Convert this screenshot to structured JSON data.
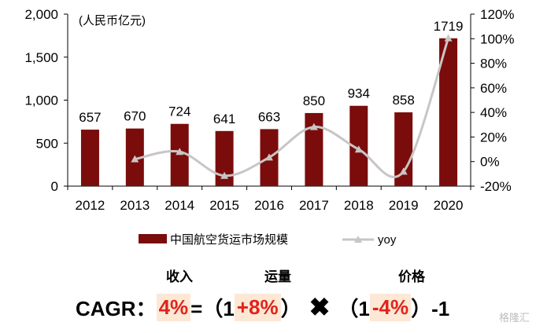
{
  "chart_data": {
    "type": "bar+line",
    "unit_label": "(人民币亿元)",
    "categories": [
      "2012",
      "2013",
      "2014",
      "2015",
      "2016",
      "2017",
      "2018",
      "2019",
      "2020"
    ],
    "series": [
      {
        "name": "中国航空货运市场规模",
        "type": "bar",
        "axis": "left",
        "values": [
          657,
          670,
          724,
          641,
          663,
          850,
          934,
          858,
          1719
        ],
        "color": "#7b0c0c"
      },
      {
        "name": "yoy",
        "type": "line",
        "axis": "right",
        "values": [
          null,
          0.02,
          0.08,
          -0.115,
          0.034,
          0.282,
          0.099,
          -0.081,
          1.004
        ],
        "color": "#c8c6c4"
      }
    ],
    "y_left": {
      "min": 0,
      "max": 2000,
      "ticks": [
        0,
        500,
        1000,
        1500,
        2000
      ],
      "tick_labels": [
        "0",
        "500",
        "1,000",
        "1,500",
        "2,000"
      ]
    },
    "y_right": {
      "min": -0.2,
      "max": 1.2,
      "ticks": [
        -0.2,
        0,
        0.2,
        0.4,
        0.6,
        0.8,
        1.0,
        1.2
      ],
      "tick_labels": [
        "-20%",
        "0%",
        "20%",
        "40%",
        "60%",
        "80%",
        "100%",
        "120%"
      ]
    },
    "legend_position": "bottom",
    "grid": false
  },
  "formula": {
    "header_income": "收入",
    "header_volume": "运量",
    "header_price": "价格",
    "cagr_label": "CAGR：",
    "cagr_value": "4%",
    "equals_open": "=（1 ",
    "volume_value": "+8%",
    "close_paren": "）",
    "times": "✖",
    "open_paren": "（1 ",
    "price_value": "-4%",
    "tail": "）-1"
  },
  "watermark": "格隆汇"
}
